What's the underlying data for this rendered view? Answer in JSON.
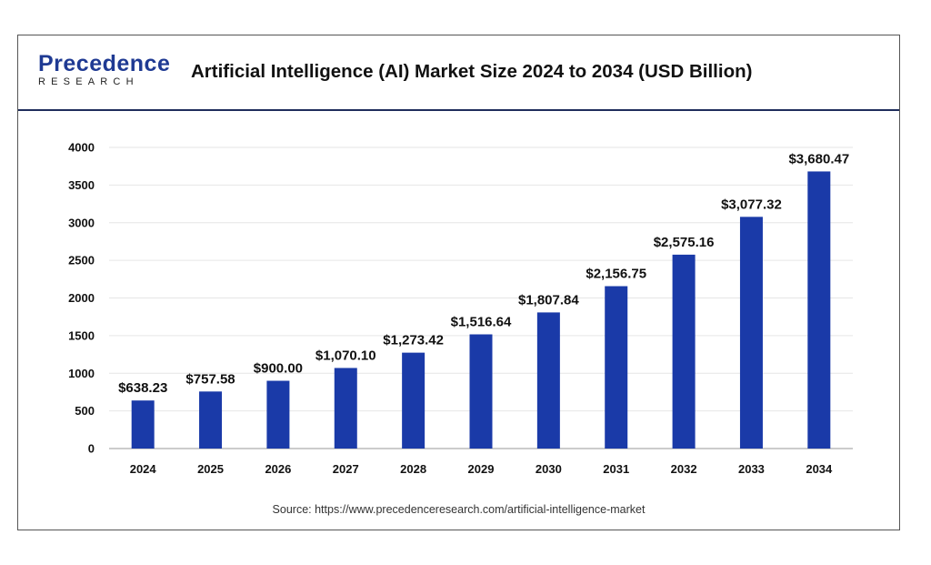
{
  "brand": {
    "name_main": "Precedence",
    "name_sub": "RESEARCH",
    "primary": "#1f3a93"
  },
  "title": "Artificial Intelligence (AI) Market Size 2024 to 2034 (USD Billion)",
  "source": "Source: https://www.precedenceresearch.com/artificial-intelligence-market",
  "chart_data": {
    "type": "bar",
    "title": "Artificial Intelligence (AI) Market Size 2024 to 2034 (USD Billion)",
    "xlabel": "",
    "ylabel": "",
    "categories": [
      "2024",
      "2025",
      "2026",
      "2027",
      "2028",
      "2029",
      "2030",
      "2031",
      "2032",
      "2033",
      "2034"
    ],
    "values": [
      638.23,
      757.58,
      900.0,
      1070.1,
      1273.42,
      1516.64,
      1807.84,
      2156.75,
      2575.16,
      3077.32,
      3680.47
    ],
    "data_labels": [
      "$638.23",
      "$757.58",
      "$900.00",
      "$1,070.10",
      "$1,273.42",
      "$1,516.64",
      "$1,807.84",
      "$2,156.75",
      "$2,575.16",
      "$3,077.32",
      "$3,680.47"
    ],
    "ylim": [
      0,
      4000
    ],
    "yticks": [
      "0",
      "500",
      "1000",
      "1500",
      "2000",
      "2500",
      "3000",
      "3500",
      "4000"
    ],
    "grid": true,
    "bar_color": "#1a3aa8",
    "legend": "none"
  }
}
